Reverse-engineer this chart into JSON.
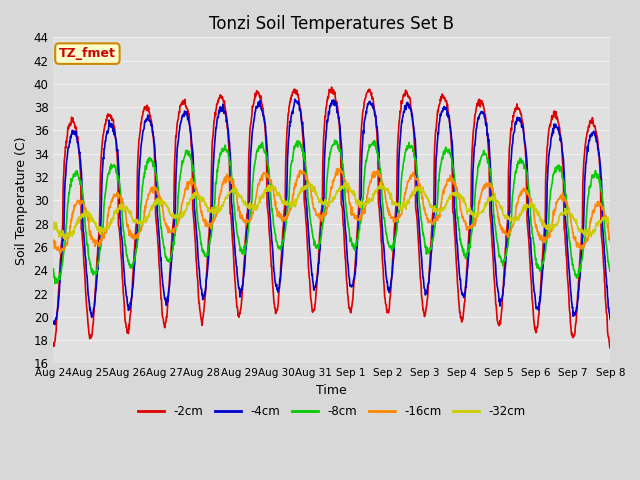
{
  "title": "Tonzi Soil Temperatures Set B",
  "xlabel": "Time",
  "ylabel": "Soil Temperature (C)",
  "ylim": [
    16,
    44
  ],
  "yticks": [
    16,
    18,
    20,
    22,
    24,
    26,
    28,
    30,
    32,
    34,
    36,
    38,
    40,
    42,
    44
  ],
  "xtick_labels": [
    "Aug 24",
    "Aug 25",
    "Aug 26",
    "Aug 27",
    "Aug 28",
    "Aug 29",
    "Aug 30",
    "Aug 31",
    "Sep 1",
    "Sep 2",
    "Sep 3",
    "Sep 4",
    "Sep 5",
    "Sep 6",
    "Sep 7",
    "Sep 8"
  ],
  "annotation_text": "TZ_fmet",
  "annotation_bg": "#ffffcc",
  "annotation_border": "#cc8800",
  "annotation_text_color": "#cc0000",
  "colors": {
    "-2cm": "#dd0000",
    "-4cm": "#0000cc",
    "-8cm": "#00cc00",
    "-16cm": "#ff8800",
    "-32cm": "#cccc00"
  },
  "line_width": 1.2,
  "fig_bg": "#d8d8d8",
  "plot_bg": "#e0e0e0",
  "grid_color": "#f0f0f0",
  "n_days": 15,
  "pts_per_day": 96,
  "base_temp": 27.0,
  "amplitudes": [
    9.5,
    8.0,
    4.5,
    2.0,
    0.8
  ],
  "delays_days": [
    0.0,
    0.04,
    0.1,
    0.2,
    0.35
  ],
  "peak_sharpness": [
    3.0,
    2.5,
    1.8,
    1.2,
    1.0
  ],
  "trend_amplitude": 3.0
}
